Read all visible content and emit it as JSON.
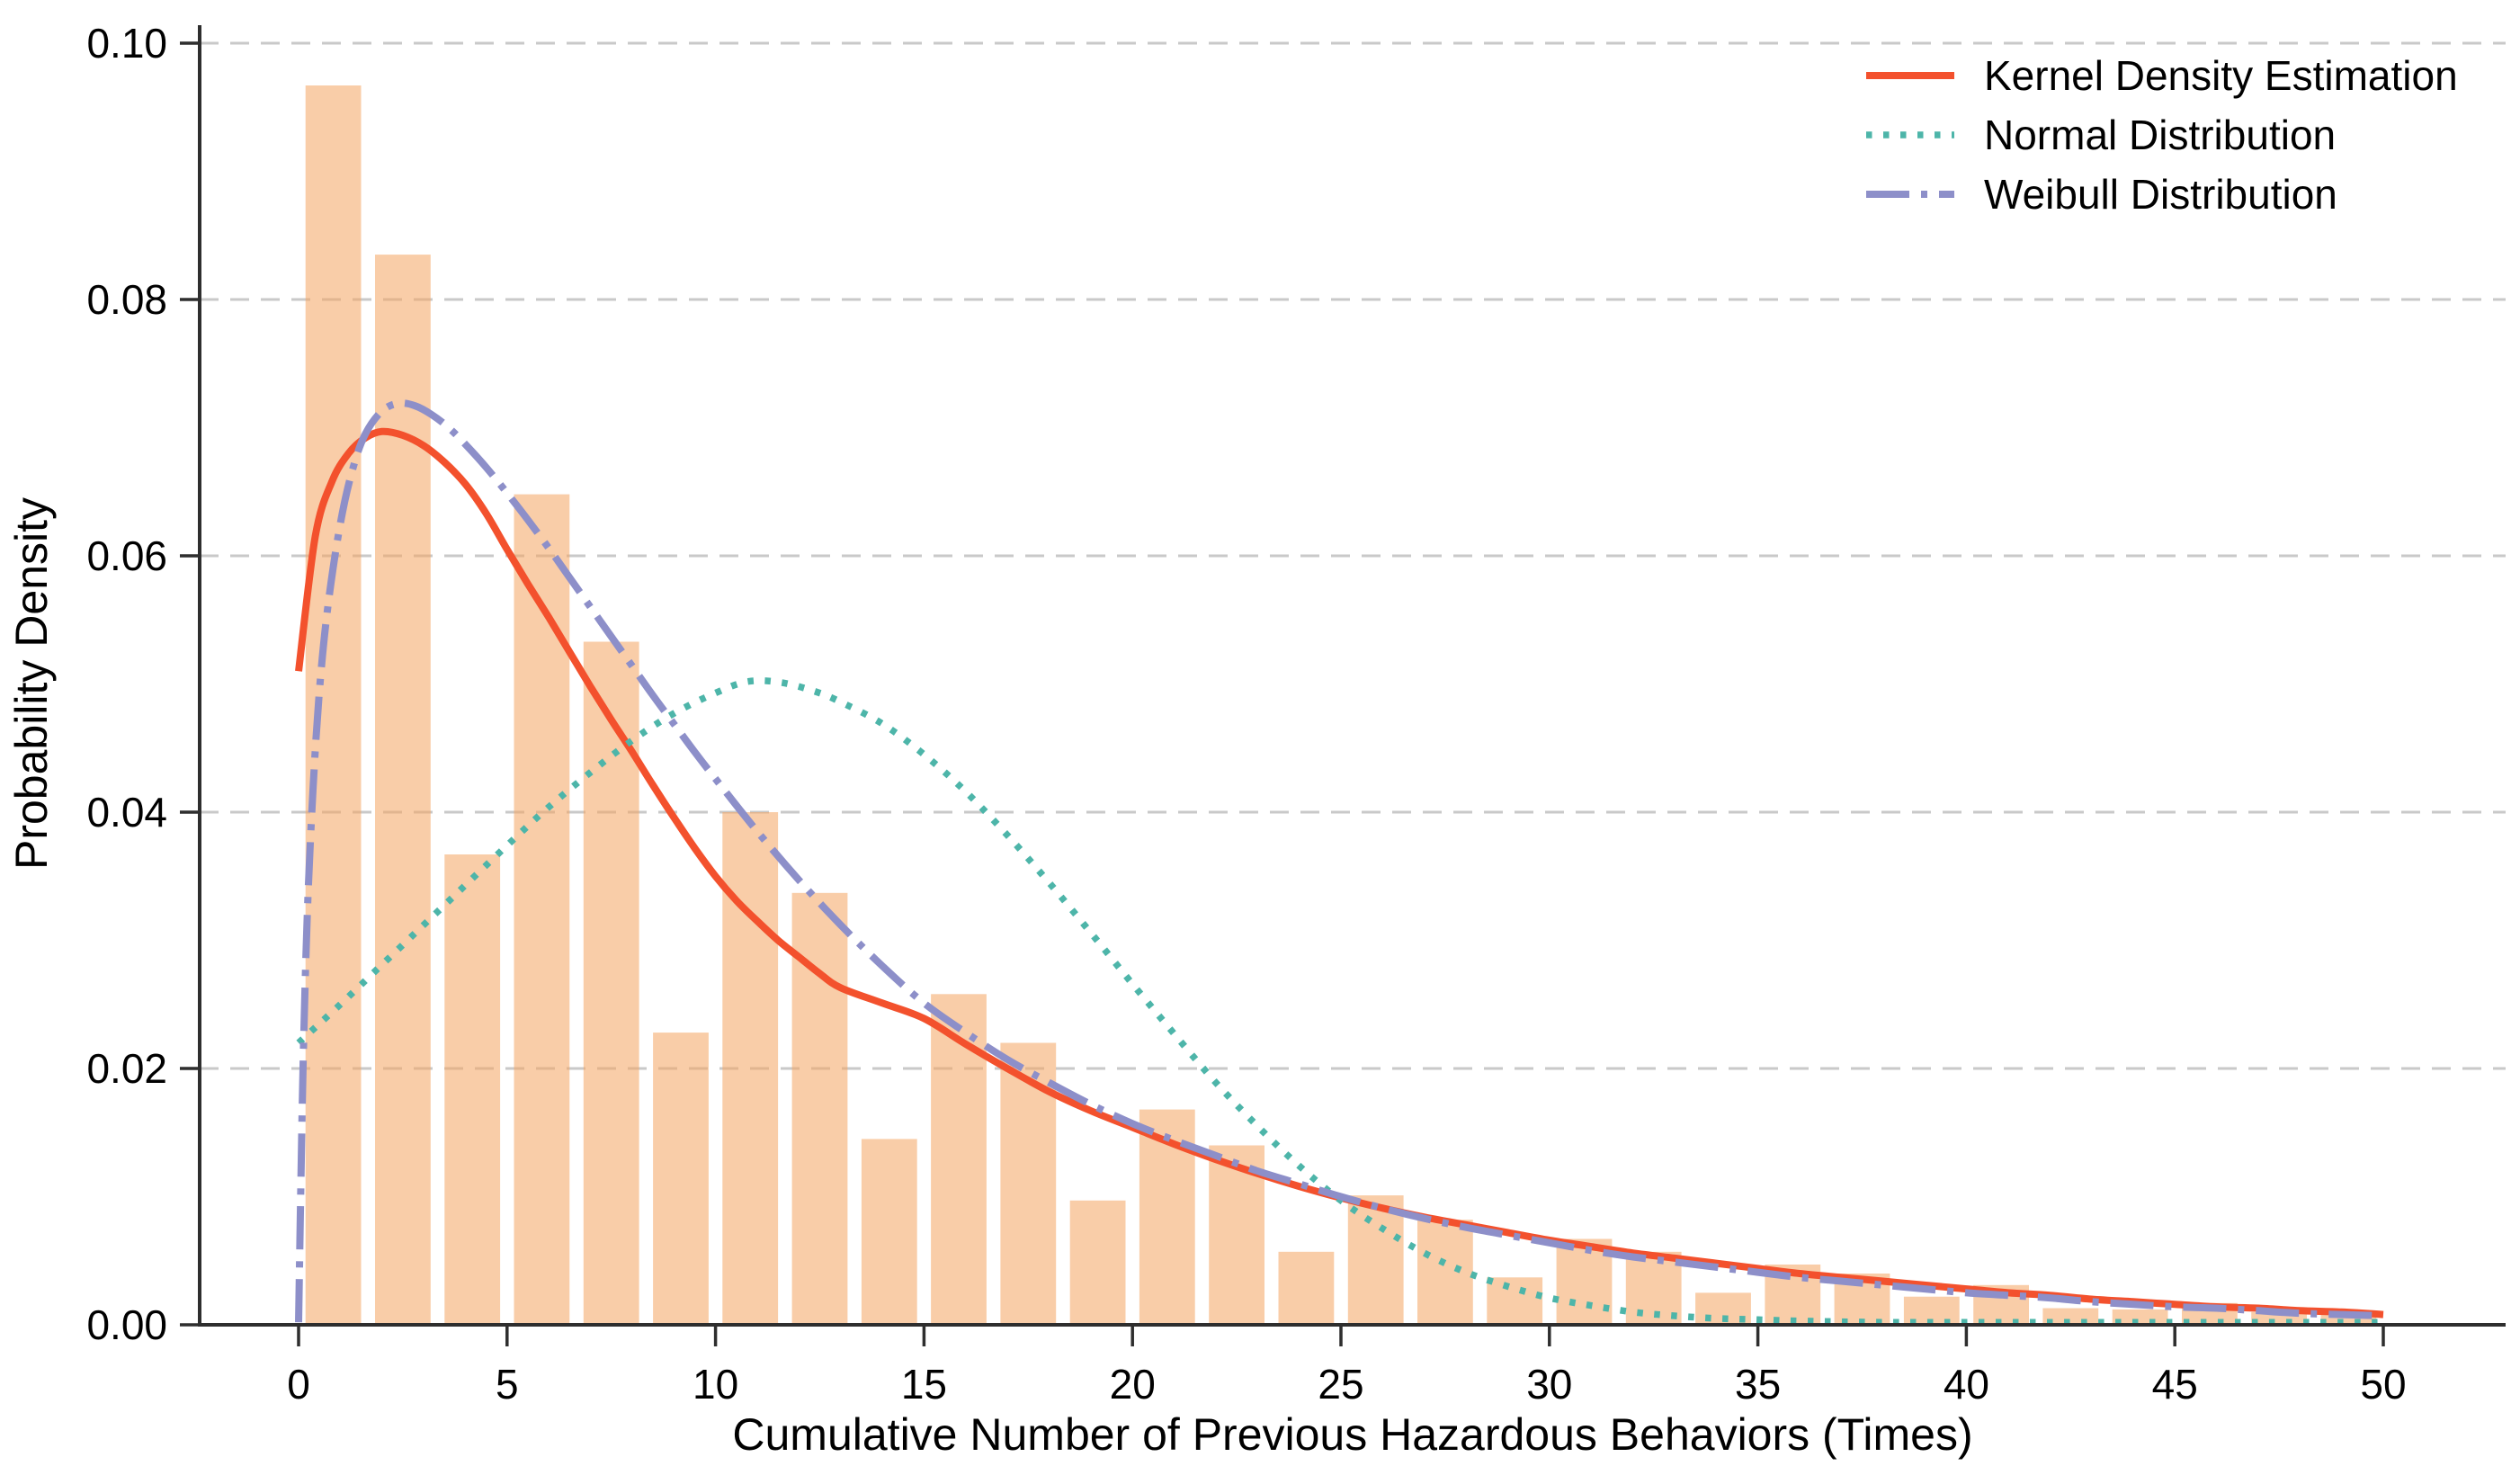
{
  "chart_data": {
    "type": "bar",
    "subtype": "histogram-with-density-curves",
    "title": "",
    "xlabel": "Cumulative Number of Previous Hazardous Behaviors (Times)",
    "ylabel": "Probability Density",
    "xlim": [
      -2.4,
      52.9
    ],
    "ylim": [
      0,
      0.1014
    ],
    "grid": "horizontal-dashed",
    "grid_color": "#c9c9c9",
    "axis_color": "#2e2e2e",
    "legend_position": "upper right",
    "x_ticks": [
      0,
      5,
      10,
      15,
      20,
      25,
      30,
      35,
      40,
      45,
      50
    ],
    "x_tick_labels": [
      "0",
      "5",
      "10",
      "15",
      "20",
      "25",
      "30",
      "35",
      "40",
      "45",
      "50"
    ],
    "y_ticks": [
      0,
      0.02,
      0.04,
      0.06,
      0.08,
      0.1
    ],
    "y_tick_labels": [
      "0.00",
      "0.02",
      "0.04",
      "0.06",
      "0.08",
      "0.10"
    ],
    "histogram": {
      "name": "histogram",
      "color": "#F4A460",
      "opacity": 0.55,
      "x_start": 0,
      "bin_width": 1.6667,
      "bar_shrink": 0.8,
      "densities": [
        0.0967,
        0.0835,
        0.0367,
        0.0648,
        0.0533,
        0.0228,
        0.04,
        0.0337,
        0.0145,
        0.0258,
        0.022,
        0.0097,
        0.0168,
        0.014,
        0.0057,
        0.0101,
        0.0082,
        0.0037,
        0.0067,
        0.0057,
        0.0025,
        0.0047,
        0.004,
        0.0022,
        0.0031,
        0.0013,
        0.0012,
        0.0017,
        0.001,
        0.001
      ]
    },
    "series": [
      {
        "name": "Kernel Density Estimation",
        "color": "#F3512D",
        "line_style": "solid",
        "points": [
          [
            0,
            0.051
          ],
          [
            0.4,
            0.0615
          ],
          [
            0.8,
            0.0658
          ],
          [
            1.2,
            0.068
          ],
          [
            1.6,
            0.0692
          ],
          [
            2,
            0.0697
          ],
          [
            2.5,
            0.0694
          ],
          [
            3,
            0.0686
          ],
          [
            3.5,
            0.0673
          ],
          [
            4,
            0.0656
          ],
          [
            4.5,
            0.0633
          ],
          [
            5,
            0.0605
          ],
          [
            5.5,
            0.0578
          ],
          [
            6,
            0.0552
          ],
          [
            6.5,
            0.0525
          ],
          [
            7,
            0.0498
          ],
          [
            7.5,
            0.0472
          ],
          [
            8,
            0.0447
          ],
          [
            8.5,
            0.0421
          ],
          [
            9,
            0.0396
          ],
          [
            9.5,
            0.0372
          ],
          [
            10,
            0.035
          ],
          [
            10.5,
            0.0331
          ],
          [
            11,
            0.0315
          ],
          [
            11.5,
            0.03
          ],
          [
            12,
            0.0287
          ],
          [
            12.5,
            0.0274
          ],
          [
            13,
            0.0263
          ],
          [
            14,
            0.0251
          ],
          [
            15,
            0.0239
          ],
          [
            16,
            0.0219
          ],
          [
            17,
            0.02
          ],
          [
            18,
            0.0182
          ],
          [
            19,
            0.0167
          ],
          [
            20,
            0.0154
          ],
          [
            21,
            0.0141
          ],
          [
            22,
            0.0129
          ],
          [
            23,
            0.0118
          ],
          [
            24,
            0.0108
          ],
          [
            25,
            0.0099
          ],
          [
            26,
            0.0091
          ],
          [
            27,
            0.0084
          ],
          [
            28,
            0.0078
          ],
          [
            29,
            0.0072
          ],
          [
            30,
            0.0066
          ],
          [
            31,
            0.0061
          ],
          [
            32,
            0.0056
          ],
          [
            33,
            0.0052
          ],
          [
            34,
            0.0048
          ],
          [
            35,
            0.0044
          ],
          [
            36,
            0.004
          ],
          [
            37,
            0.0037
          ],
          [
            38,
            0.0034
          ],
          [
            39,
            0.0031
          ],
          [
            40,
            0.0028
          ],
          [
            41,
            0.0025
          ],
          [
            42,
            0.0023
          ],
          [
            43,
            0.002
          ],
          [
            44,
            0.0018
          ],
          [
            45,
            0.0016
          ],
          [
            46,
            0.0014
          ],
          [
            47,
            0.0013
          ],
          [
            48,
            0.0011
          ],
          [
            49,
            0.001
          ],
          [
            50,
            0.0008
          ]
        ]
      },
      {
        "name": "Normal Distribution",
        "color": "#4DB5A9",
        "line_style": "dotted",
        "points": [
          [
            0,
            0.022
          ],
          [
            1,
            0.025
          ],
          [
            2,
            0.0281
          ],
          [
            3,
            0.0312
          ],
          [
            4,
            0.0343
          ],
          [
            5,
            0.0374
          ],
          [
            6,
            0.0404
          ],
          [
            7,
            0.0431
          ],
          [
            8,
            0.0456
          ],
          [
            9,
            0.0477
          ],
          [
            10,
            0.0493
          ],
          [
            10.8,
            0.0502
          ],
          [
            11.6,
            0.0501
          ],
          [
            12.4,
            0.0494
          ],
          [
            13,
            0.0486
          ],
          [
            14,
            0.0469
          ],
          [
            15,
            0.0445
          ],
          [
            16,
            0.0416
          ],
          [
            17,
            0.0382
          ],
          [
            18,
            0.0345
          ],
          [
            19,
            0.0306
          ],
          [
            20,
            0.0266
          ],
          [
            21,
            0.0227
          ],
          [
            22,
            0.0189
          ],
          [
            23,
            0.0155
          ],
          [
            24,
            0.0124
          ],
          [
            25,
            0.0097
          ],
          [
            26,
            0.0075
          ],
          [
            27,
            0.0056
          ],
          [
            28,
            0.0041
          ],
          [
            29,
            0.003
          ],
          [
            30,
            0.0021
          ],
          [
            31,
            0.0015
          ],
          [
            32,
            0.001
          ],
          [
            33,
            0.0007
          ],
          [
            34,
            0.0005
          ],
          [
            35,
            0.0004
          ],
          [
            36,
            0.0003
          ],
          [
            38,
            0.0002
          ],
          [
            40,
            0.0002
          ],
          [
            43,
            0.0002
          ],
          [
            46,
            0.0002
          ],
          [
            50,
            0.0002
          ]
        ]
      },
      {
        "name": "Weibull Distribution",
        "color": "#8D8FC9",
        "line_style": "dashdot",
        "points": [
          [
            0,
            0.0002
          ],
          [
            0.05,
            0.01
          ],
          [
            0.12,
            0.022
          ],
          [
            0.22,
            0.033
          ],
          [
            0.35,
            0.042
          ],
          [
            0.5,
            0.0495
          ],
          [
            0.7,
            0.056
          ],
          [
            1,
            0.0625
          ],
          [
            1.3,
            0.0668
          ],
          [
            1.6,
            0.0695
          ],
          [
            2,
            0.0713
          ],
          [
            2.4,
            0.0719
          ],
          [
            2.8,
            0.0717
          ],
          [
            3.2,
            0.071
          ],
          [
            3.6,
            0.07
          ],
          [
            4,
            0.0687
          ],
          [
            4.5,
            0.0669
          ],
          [
            5,
            0.0649
          ],
          [
            5.5,
            0.0628
          ],
          [
            6,
            0.0606
          ],
          [
            6.5,
            0.0583
          ],
          [
            7,
            0.056
          ],
          [
            7.5,
            0.0537
          ],
          [
            8,
            0.0514
          ],
          [
            8.5,
            0.0491
          ],
          [
            9,
            0.0469
          ],
          [
            9.5,
            0.0447
          ],
          [
            10,
            0.0426
          ],
          [
            11,
            0.0385
          ],
          [
            12,
            0.0347
          ],
          [
            13,
            0.0312
          ],
          [
            14,
            0.028
          ],
          [
            15,
            0.0251
          ],
          [
            16,
            0.0228
          ],
          [
            17,
            0.0207
          ],
          [
            18,
            0.0189
          ],
          [
            19,
            0.0172
          ],
          [
            20,
            0.0157
          ],
          [
            21,
            0.0144
          ],
          [
            22,
            0.0132
          ],
          [
            23,
            0.012
          ],
          [
            24,
            0.011
          ],
          [
            25,
            0.01
          ],
          [
            26,
            0.0091
          ],
          [
            27,
            0.0083
          ],
          [
            28,
            0.0076
          ],
          [
            29,
            0.007
          ],
          [
            30,
            0.0064
          ],
          [
            31,
            0.0058
          ],
          [
            32,
            0.0053
          ],
          [
            33,
            0.0049
          ],
          [
            34,
            0.0045
          ],
          [
            35,
            0.0041
          ],
          [
            36,
            0.0037
          ],
          [
            37,
            0.0034
          ],
          [
            38,
            0.0031
          ],
          [
            39,
            0.0028
          ],
          [
            40,
            0.0025
          ],
          [
            41,
            0.0023
          ],
          [
            42,
            0.0021
          ],
          [
            43,
            0.0018
          ],
          [
            44,
            0.0016
          ],
          [
            45,
            0.0014
          ],
          [
            46,
            0.0013
          ],
          [
            47,
            0.0011
          ],
          [
            48,
            0.0009
          ],
          [
            49,
            0.0008
          ],
          [
            50,
            0.0007
          ]
        ]
      }
    ]
  }
}
